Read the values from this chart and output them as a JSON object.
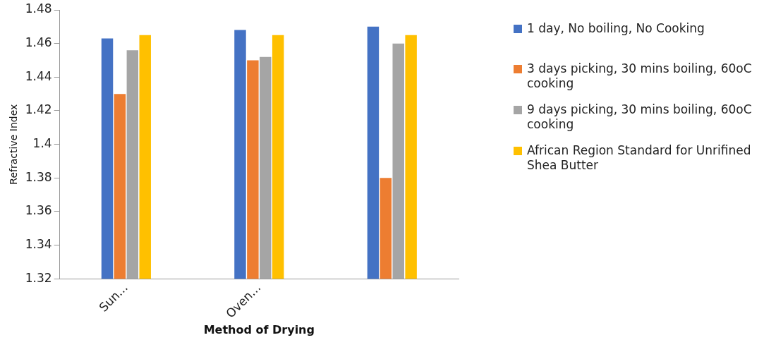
{
  "chart_data": {
    "type": "bar",
    "xlabel": "Method of Drying",
    "ylabel": "Refractive Index",
    "categories": [
      "Sun...",
      "Oven...",
      null
    ],
    "series": [
      {
        "name": "1 day, No boiling, No Cooking",
        "color": "#4472c4",
        "values": [
          1.463,
          1.468,
          1.47
        ]
      },
      {
        "name": "3 days picking, 30 mins boiling, 60oC cooking",
        "color": "#ed7d31",
        "values": [
          1.43,
          1.45,
          1.38
        ]
      },
      {
        "name": "9 days picking, 30 mins boiling, 60oC cooking",
        "color": "#a5a5a5",
        "values": [
          1.456,
          1.452,
          1.46
        ]
      },
      {
        "name": "African Region Standard for Unrifined Shea Butter",
        "color": "#ffc000",
        "values": [
          1.465,
          1.465,
          1.465
        ]
      }
    ],
    "ylim": [
      1.32,
      1.48
    ],
    "yticks": [
      1.32,
      1.34,
      1.36,
      1.38,
      1.4,
      1.42,
      1.44,
      1.46,
      1.48
    ],
    "grid": false,
    "legend": "right"
  }
}
